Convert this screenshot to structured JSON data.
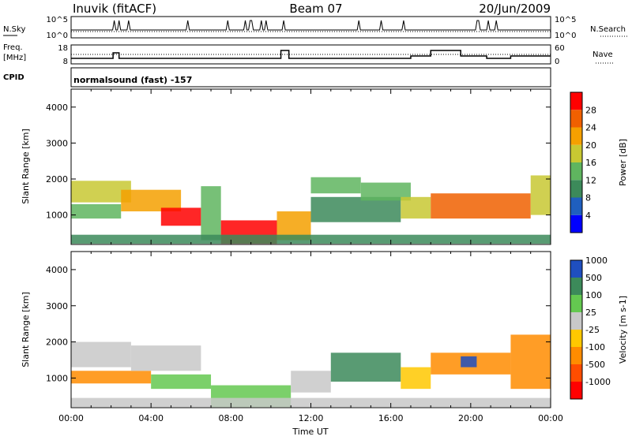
{
  "header": {
    "station": "Inuvik (fitACF)",
    "beam": "Beam 07",
    "date": "20/Jun/2009"
  },
  "noise_panel": {
    "left_label": "N.Sky",
    "right_label": "N.Search",
    "left_ticks": [
      "10^5",
      "10^0"
    ],
    "right_ticks": [
      "10^5",
      "10^0"
    ]
  },
  "freq_panel": {
    "left_label_1": "Freq.",
    "left_label_2": "[MHz]",
    "right_label": "Nave",
    "left_ticks": [
      "18",
      "8"
    ],
    "right_ticks": [
      "60",
      "0"
    ]
  },
  "cpid_panel": {
    "label": "CPID",
    "text": "normalsound (fast) -157"
  },
  "colors": {
    "power_scale": [
      "#0000ff",
      "#1f5fbf",
      "#3c8a5a",
      "#5fb55f",
      "#c8c832",
      "#f5a000",
      "#f06000",
      "#ff0000"
    ],
    "velocity_scale": [
      "#ff0000",
      "#ff4d00",
      "#ff8c00",
      "#ffc800",
      "#c8c8c8",
      "#64c850",
      "#3c8a5a",
      "#1f4fbf"
    ]
  },
  "chart_data": [
    {
      "type": "heatmap",
      "name": "power",
      "ylabel": "Slant Range [km]",
      "yticks": [
        "1000",
        "2000",
        "3000",
        "4000"
      ],
      "ylim": [
        180,
        4500
      ],
      "xlim": [
        0,
        24
      ],
      "xticks": [
        "00:00",
        "04:00",
        "08:00",
        "12:00",
        "16:00",
        "20:00",
        "00:00"
      ],
      "colorbar_label": "Power [dB]",
      "colorbar_ticks": [
        "4",
        "8",
        "12",
        "16",
        "20",
        "24",
        "28"
      ],
      "colorbar_range": [
        0,
        32
      ],
      "regions": [
        {
          "t0": 0.0,
          "t1": 3.0,
          "r0": 1350,
          "r1": 1950,
          "v": 17
        },
        {
          "t0": 0.0,
          "t1": 2.5,
          "r0": 900,
          "r1": 1300,
          "v": 14
        },
        {
          "t0": 2.5,
          "t1": 5.5,
          "r0": 1100,
          "r1": 1700,
          "v": 21
        },
        {
          "t0": 4.5,
          "t1": 6.5,
          "r0": 700,
          "r1": 1200,
          "v": 28
        },
        {
          "t0": 6.5,
          "t1": 7.5,
          "r0": 300,
          "r1": 1800,
          "v": 12
        },
        {
          "t0": 7.5,
          "t1": 10.3,
          "r0": 200,
          "r1": 850,
          "v": 31
        },
        {
          "t0": 10.3,
          "t1": 12.0,
          "r0": 300,
          "r1": 1100,
          "v": 20
        },
        {
          "t0": 12.0,
          "t1": 14.5,
          "r0": 1600,
          "r1": 2050,
          "v": 13
        },
        {
          "t0": 12.0,
          "t1": 16.5,
          "r0": 800,
          "r1": 1500,
          "v": 11
        },
        {
          "t0": 14.5,
          "t1": 17.0,
          "r0": 1400,
          "r1": 1900,
          "v": 15
        },
        {
          "t0": 16.5,
          "t1": 18.0,
          "r0": 900,
          "r1": 1500,
          "v": 19
        },
        {
          "t0": 18.0,
          "t1": 23.0,
          "r0": 900,
          "r1": 1600,
          "v": 27
        },
        {
          "t0": 23.0,
          "t1": 24.0,
          "r0": 1000,
          "r1": 2100,
          "v": 18
        },
        {
          "t0": 0.0,
          "t1": 24.0,
          "r0": 200,
          "r1": 450,
          "v": 9
        }
      ]
    },
    {
      "type": "heatmap",
      "name": "velocity",
      "ylabel": "Slant Range [km]",
      "yticks": [
        "1000",
        "2000",
        "3000",
        "4000"
      ],
      "ylim": [
        180,
        4500
      ],
      "xlim": [
        0,
        24
      ],
      "xticks": [
        "00:00",
        "04:00",
        "08:00",
        "12:00",
        "16:00",
        "20:00",
        "00:00"
      ],
      "xlabel": "Time UT",
      "colorbar_label": "Velocity [m s-1]",
      "colorbar_ticks": [
        "1000",
        "500",
        "100",
        "25",
        "-25",
        "-100",
        "-500",
        "-1000"
      ],
      "regions": [
        {
          "t0": 0.0,
          "t1": 3.0,
          "r0": 1300,
          "r1": 2000,
          "v": 0
        },
        {
          "t0": 0.0,
          "t1": 4.0,
          "r0": 850,
          "r1": 1200,
          "v": -200
        },
        {
          "t0": 3.0,
          "t1": 6.5,
          "r0": 1200,
          "r1": 1900,
          "v": 10
        },
        {
          "t0": 4.0,
          "t1": 7.0,
          "r0": 700,
          "r1": 1100,
          "v": 60
        },
        {
          "t0": 7.0,
          "t1": 11.0,
          "r0": 200,
          "r1": 800,
          "v": 80
        },
        {
          "t0": 11.0,
          "t1": 13.0,
          "r0": 600,
          "r1": 1200,
          "v": 10
        },
        {
          "t0": 13.0,
          "t1": 16.5,
          "r0": 900,
          "r1": 1700,
          "v": 300
        },
        {
          "t0": 16.5,
          "t1": 18.0,
          "r0": 700,
          "r1": 1300,
          "v": -60
        },
        {
          "t0": 18.0,
          "t1": 22.0,
          "r0": 1100,
          "r1": 1700,
          "v": -400
        },
        {
          "t0": 19.5,
          "t1": 20.3,
          "r0": 1300,
          "r1": 1600,
          "v": 600
        },
        {
          "t0": 22.0,
          "t1": 24.0,
          "r0": 700,
          "r1": 2200,
          "v": -150
        },
        {
          "t0": 0.0,
          "t1": 24.0,
          "r0": 200,
          "r1": 450,
          "v": 20
        }
      ]
    }
  ],
  "ax_time": {
    "xlabel": "Time UT"
  }
}
